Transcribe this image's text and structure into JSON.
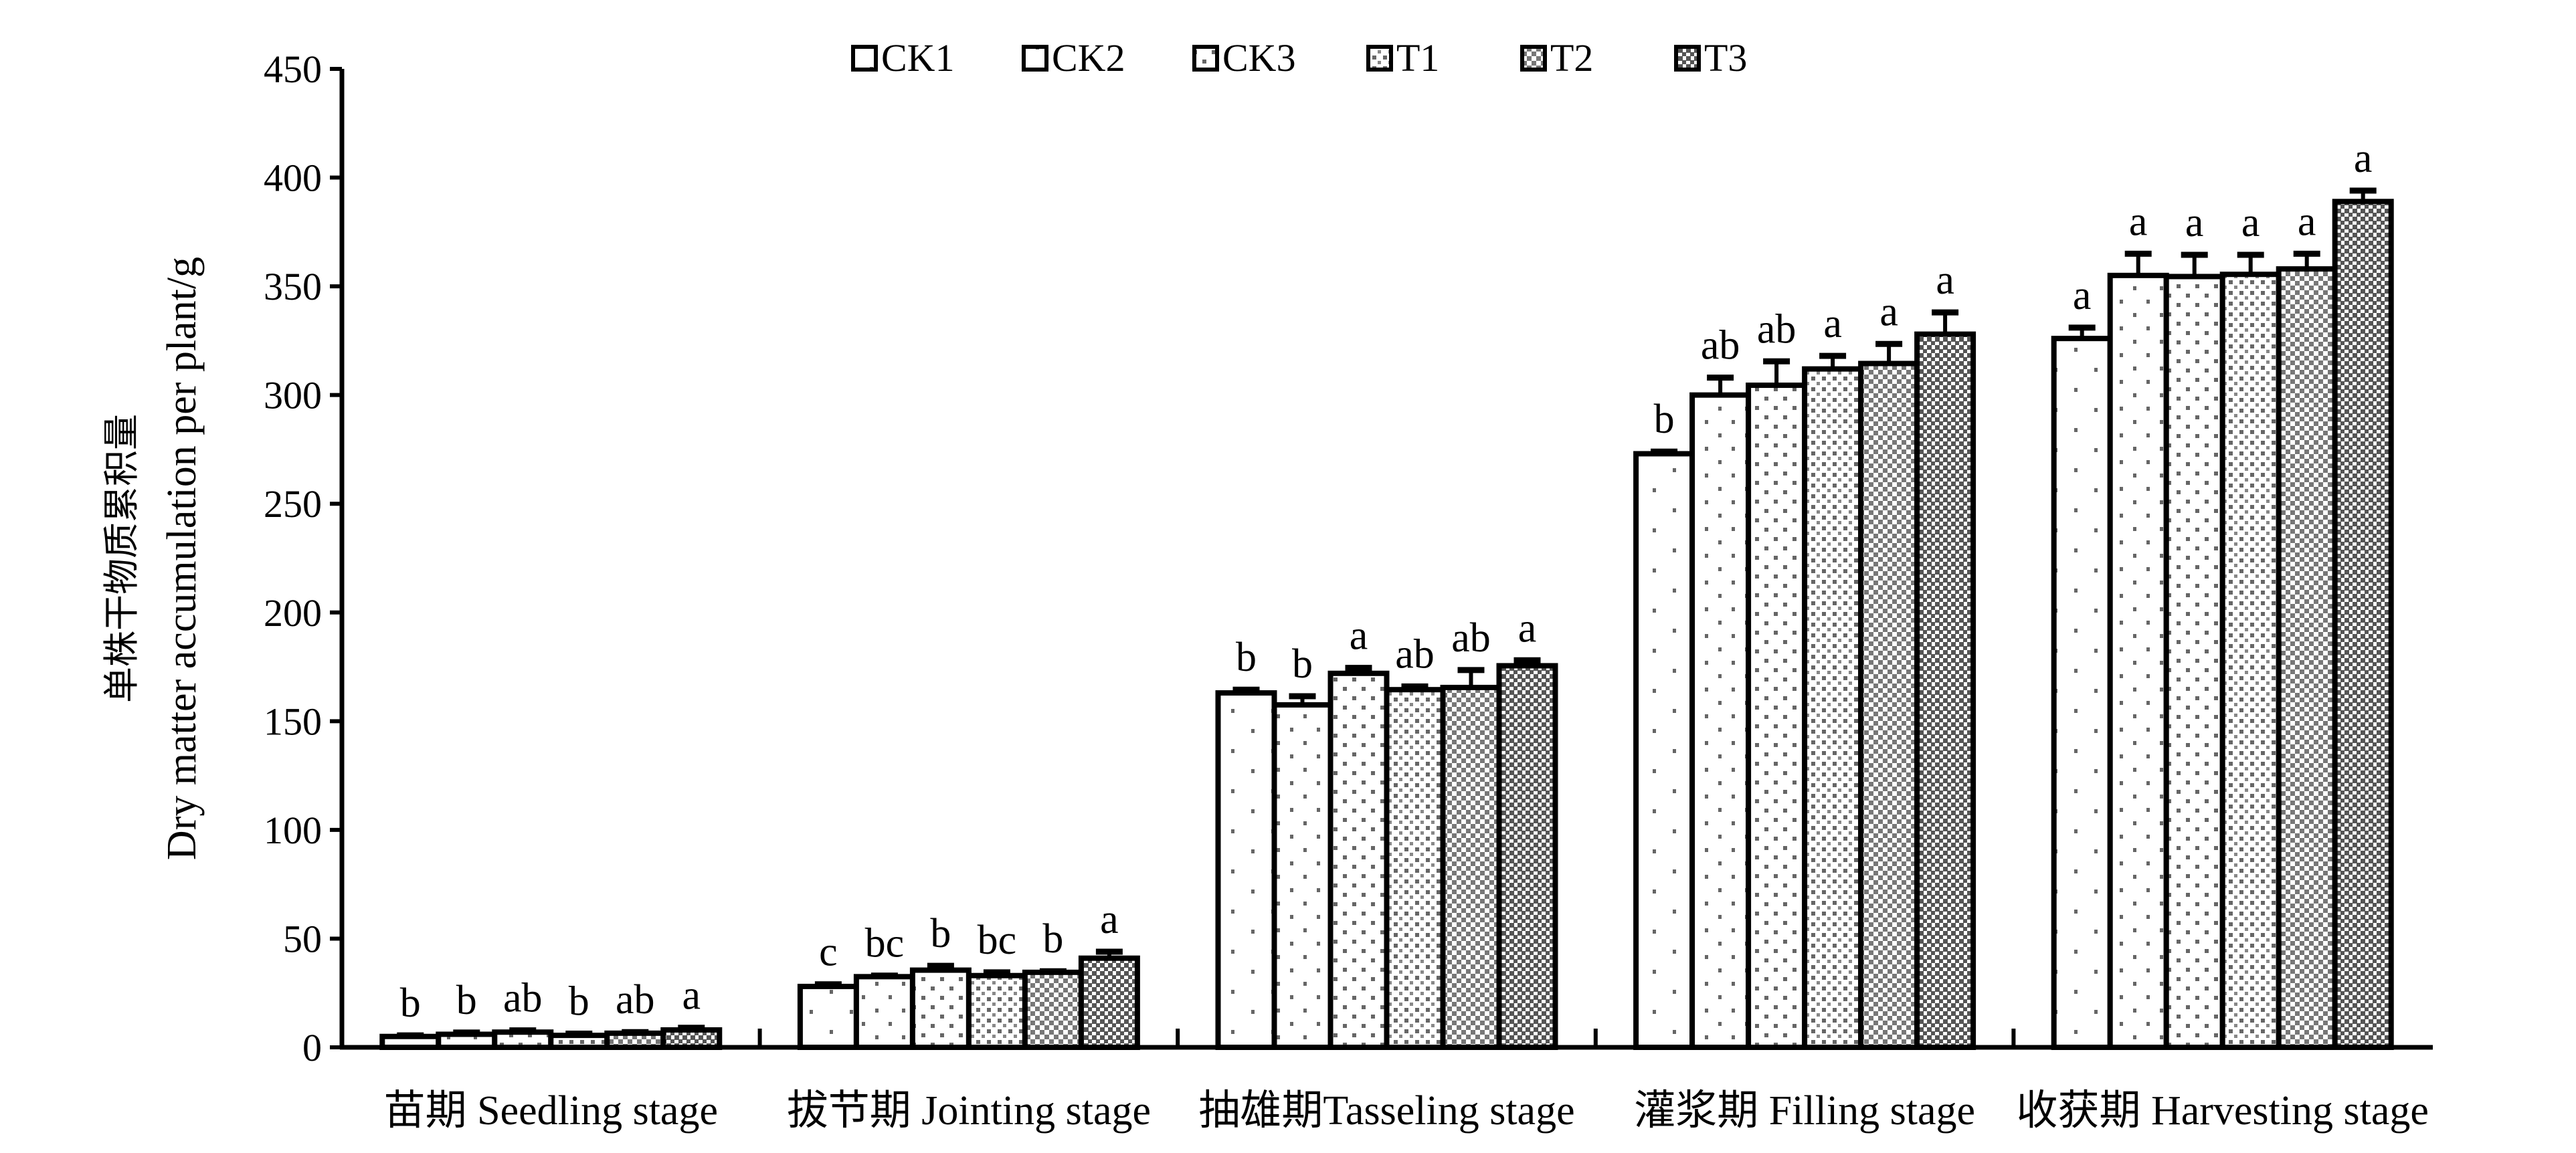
{
  "chart_data": {
    "type": "bar",
    "title": "",
    "ylabel_cn": "单株干物质累积量",
    "ylabel": "Dry matter accumulation per plant/g",
    "xlabel": "",
    "ylim": [
      0,
      450
    ],
    "yticks": [
      0,
      50,
      100,
      150,
      200,
      250,
      300,
      350,
      400,
      450
    ],
    "grid": false,
    "legend_position": "top-center",
    "categories": [
      "苗期 Seedling stage",
      "拔节期 Jointing stage",
      "抽雄期Tasseling stage",
      "灌浆期 Filling stage",
      "收获期 Harvesting stage"
    ],
    "series": [
      {
        "name": "CK1",
        "values": [
          5,
          28,
          163,
          273,
          326
        ],
        "errors": [
          0.5,
          1,
          1.5,
          1,
          5
        ],
        "letters": [
          "b",
          "c",
          "b",
          "b",
          "a"
        ]
      },
      {
        "name": "CK2",
        "values": [
          6,
          32.5,
          157.5,
          300,
          355
        ],
        "errors": [
          0.8,
          0.5,
          4,
          8,
          10
        ],
        "letters": [
          "b",
          "bc",
          "b",
          "ab",
          "a"
        ]
      },
      {
        "name": "CK3",
        "values": [
          7,
          35.5,
          172,
          304.5,
          354.5
        ],
        "errors": [
          0.8,
          2,
          2.5,
          11,
          10
        ],
        "letters": [
          "ab",
          "b",
          "a",
          "ab",
          "a"
        ]
      },
      {
        "name": "T1",
        "values": [
          5.5,
          33,
          164.5,
          312,
          355.5
        ],
        "errors": [
          0.8,
          1.5,
          1.5,
          6,
          9
        ],
        "letters": [
          "b",
          "bc",
          "ab",
          "a",
          "a"
        ]
      },
      {
        "name": "T2",
        "values": [
          6.5,
          34.5,
          165.5,
          314.5,
          358
        ],
        "errors": [
          0.5,
          0.5,
          8,
          9,
          7
        ],
        "letters": [
          "ab",
          "b",
          "ab",
          "a",
          "a"
        ]
      },
      {
        "name": "T3",
        "values": [
          8,
          41,
          175.5,
          328,
          389
        ],
        "errors": [
          1,
          3,
          2.5,
          10,
          5
        ],
        "letters": [
          "a",
          "a",
          "a",
          "a",
          "a"
        ]
      }
    ]
  }
}
